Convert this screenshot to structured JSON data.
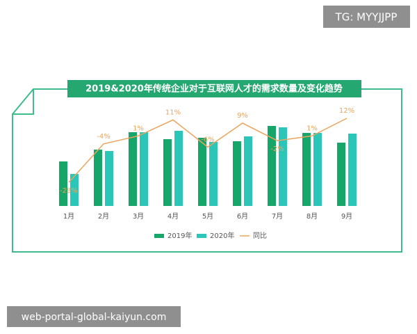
{
  "watermarks": [
    "TG: MYYJJPP",
    "web-portal-global-kaiyun.com"
  ],
  "chart_data": {
    "type": "bar",
    "title": "2019&2020年传统企业对于互联网人才的需求数量及变化趋势",
    "categories": [
      "1月",
      "2月",
      "3月",
      "4月",
      "5月",
      "6月",
      "7月",
      "8月",
      "9月"
    ],
    "series": [
      {
        "name": "2019年",
        "color": "#16a66a",
        "values": [
          64,
          81,
          106,
          96,
          98,
          93,
          115,
          105,
          91
        ]
      },
      {
        "name": "2020年",
        "color": "#2cc6b8",
        "values": [
          46,
          79,
          106,
          108,
          92,
          100,
          113,
          105,
          104
        ]
      },
      {
        "name": "同比",
        "type": "line",
        "color": "#eba45c",
        "values": [
          -28,
          -4,
          1,
          11,
          -6,
          9,
          -2,
          1,
          12
        ],
        "value_labels": [
          "-28%",
          "-4%",
          "1%",
          "11%",
          "-6%",
          "9%",
          "-2%",
          "1%",
          "12%"
        ]
      }
    ]
  }
}
